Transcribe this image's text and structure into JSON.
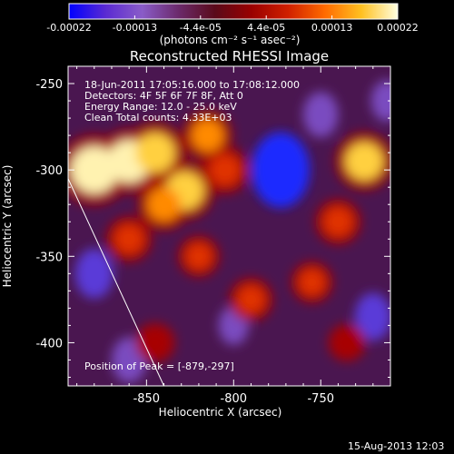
{
  "colorbar": {
    "colors": [
      "#0000ff",
      "#5a2ad2",
      "#8a5cc8",
      "#6b2a6b",
      "#5a0a1a",
      "#9a0000",
      "#d02000",
      "#ff6a00",
      "#ffc020",
      "#ffffe0"
    ],
    "tick_labels": [
      "-0.00022",
      "-0.00013",
      "-4.4e-05",
      "4.4e-05",
      "0.00013",
      "0.00022"
    ],
    "unit_label": "(photons cm⁻² s⁻¹ asec⁻²)"
  },
  "chart_data": {
    "type": "heatmap",
    "title": "Reconstructed RHESSI Image",
    "xlabel": "Heliocentric X (arcsec)",
    "ylabel": "Heliocentric Y (arcsec)",
    "xlim": [
      -895,
      -710
    ],
    "ylim": [
      -425,
      -240
    ],
    "x_ticks": [
      -850,
      -800,
      -750
    ],
    "y_ticks": [
      -250,
      -300,
      -350,
      -400
    ],
    "x_tick_labels": [
      "-850",
      "-800",
      "-750"
    ],
    "y_tick_labels": [
      "-250",
      "-300",
      "-350",
      "-400"
    ],
    "annotations": [
      "18-Jun-2011 17:05:16.000 to 17:08:12.000",
      "Detectors: 4F 5F 6F 7F 8F, Att 0",
      "Energy Range: 12.0 - 25.0 keV",
      "Clean     Total counts: 4.33E+03"
    ],
    "peak_label": "Position of Peak = [-879,-297]",
    "peak_position": [
      -879,
      -297
    ],
    "limb_line": [
      [
        -895,
        -305
      ],
      [
        -840,
        -425
      ]
    ],
    "hot_spots": [
      {
        "x": -880,
        "y": -300,
        "value": 0.00022
      },
      {
        "x": -860,
        "y": -295,
        "value": 0.00019
      },
      {
        "x": -845,
        "y": -290,
        "value": 0.00017
      },
      {
        "x": -828,
        "y": -312,
        "value": 0.00016
      },
      {
        "x": -840,
        "y": -320,
        "value": 0.00013
      },
      {
        "x": -815,
        "y": -280,
        "value": 0.00012
      },
      {
        "x": -805,
        "y": -300,
        "value": 0.00011
      },
      {
        "x": -725,
        "y": -295,
        "value": 0.00016
      },
      {
        "x": -740,
        "y": -330,
        "value": 0.0001
      },
      {
        "x": -860,
        "y": -340,
        "value": 0.0001
      },
      {
        "x": -820,
        "y": -350,
        "value": 8e-05
      },
      {
        "x": -790,
        "y": -375,
        "value": 9e-05
      },
      {
        "x": -755,
        "y": -365,
        "value": 8e-05
      },
      {
        "x": -845,
        "y": -400,
        "value": 7e-05
      },
      {
        "x": -735,
        "y": -400,
        "value": 6e-05
      }
    ],
    "cold_spots": [
      {
        "x": -773,
        "y": -300,
        "value": -0.00022
      },
      {
        "x": -880,
        "y": -360,
        "value": -0.0001
      },
      {
        "x": -750,
        "y": -268,
        "value": -8e-05
      },
      {
        "x": -720,
        "y": -385,
        "value": -9e-05
      },
      {
        "x": -800,
        "y": -390,
        "value": -5e-05
      },
      {
        "x": -860,
        "y": -410,
        "value": -8e-05
      },
      {
        "x": -712,
        "y": -260,
        "value": -6e-05
      }
    ]
  },
  "footer": {
    "timestamp": "15-Aug-2013 12:03"
  }
}
